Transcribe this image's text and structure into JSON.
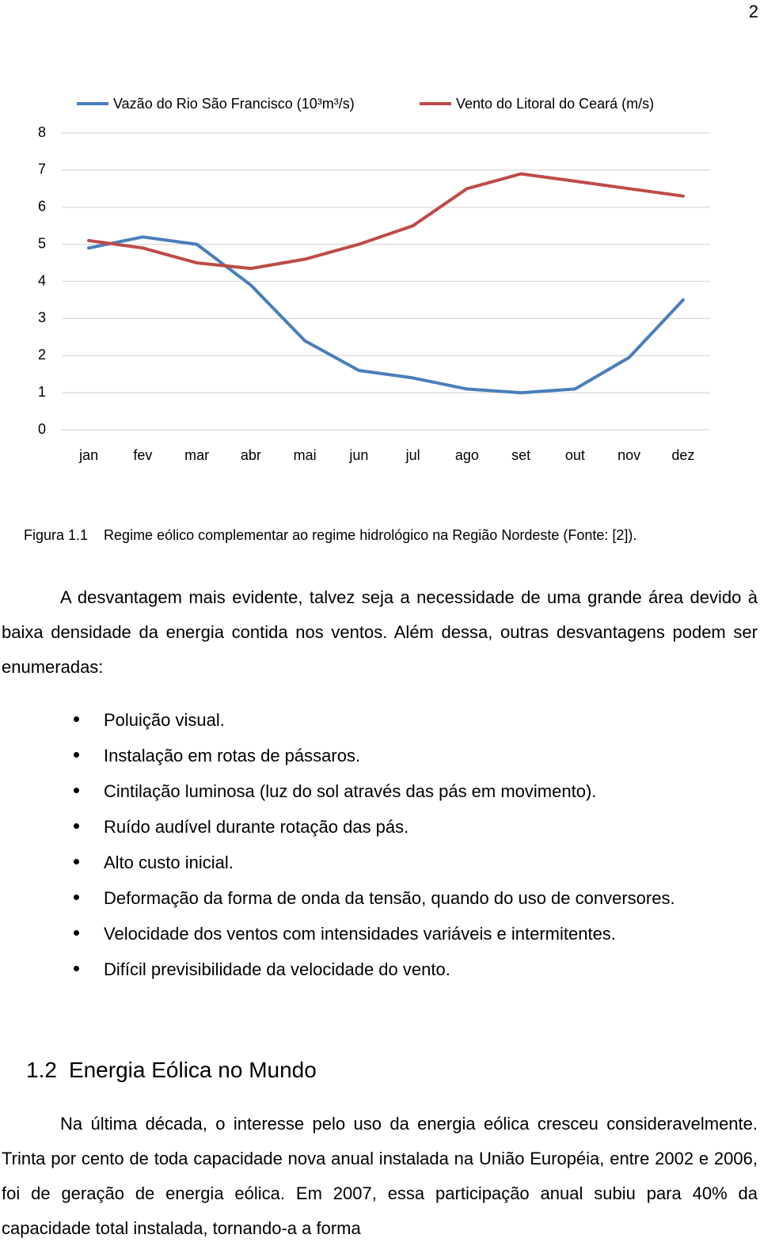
{
  "page_number": "2",
  "chart_data": {
    "type": "line",
    "categories": [
      "jan",
      "fev",
      "mar",
      "abr",
      "mai",
      "jun",
      "jul",
      "ago",
      "set",
      "out",
      "nov",
      "dez"
    ],
    "series": [
      {
        "name": "Vazão do Rio São Francisco (10³m³/s)",
        "color": "#4a7ebb",
        "values": [
          4.9,
          5.2,
          5.0,
          3.9,
          2.4,
          1.6,
          1.4,
          1.1,
          1.0,
          1.1,
          1.95,
          3.5
        ]
      },
      {
        "name": "Vento do Litoral do Ceará (m/s)",
        "color": "#be4b48",
        "values": [
          5.1,
          4.9,
          4.5,
          4.35,
          4.6,
          5.0,
          5.5,
          6.5,
          6.9,
          6.7,
          6.5,
          6.3
        ]
      }
    ],
    "ylim": [
      0,
      8
    ],
    "yticks": [
      0,
      1,
      2,
      3,
      4,
      5,
      6,
      7,
      8
    ],
    "grid": true,
    "legend": "top"
  },
  "caption": {
    "label": "Figura 1.1",
    "text": "Regime eólico complementar ao regime hidrológico na Região Nordeste (Fonte: [2])."
  },
  "paragraphs": [
    "A desvantagem mais evidente, talvez seja a necessidade de uma grande área devido à baixa densidade da energia contida nos ventos. Além dessa, outras desvantagens podem ser enumeradas:",
    "Na última década, o interesse pelo uso da energia eólica cresceu consideravelmente. Trinta por cento de toda capacidade nova anual instalada na União Européia, entre 2002 e 2006, foi de geração de energia eólica. Em 2007, essa participação anual subiu para 40% da capacidade total instalada, tornando-a a forma"
  ],
  "bullets": [
    "Poluição visual.",
    "Instalação em rotas de pássaros.",
    "Cintilação luminosa (luz do sol através das pás em movimento).",
    "Ruído audível durante rotação das pás.",
    "Alto custo inicial.",
    "Deformação da forma de onda da tensão, quando do uso de conversores.",
    "Velocidade dos ventos com intensidades variáveis e intermitentes.",
    "Difícil previsibilidade da velocidade do vento."
  ],
  "section": {
    "number": "1.2",
    "title": "Energia Eólica no Mundo"
  }
}
